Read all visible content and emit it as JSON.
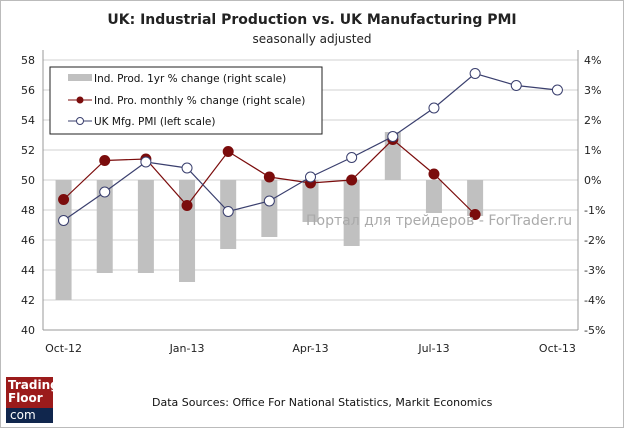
{
  "chart_data": {
    "type": "bar+line",
    "title": "UK: Industrial Production vs. UK Manufacturing PMI",
    "subtitle": "seasonally adjusted",
    "categories": [
      "Oct-12",
      "Nov-12",
      "Dec-12",
      "Jan-13",
      "Feb-13",
      "Mar-13",
      "Apr-13",
      "May-13",
      "Jun-13",
      "Jul-13",
      "Aug-13",
      "Sep-13",
      "Oct-13"
    ],
    "x_tick_labels": [
      "Oct-12",
      "Jan-13",
      "Apr-13",
      "Jul-13",
      "Oct-13"
    ],
    "left_axis": {
      "ylim": [
        40,
        58
      ],
      "ticks": [
        "40",
        "42",
        "44",
        "46",
        "48",
        "50",
        "52",
        "54",
        "56",
        "58"
      ]
    },
    "right_axis": {
      "ylim": [
        -5,
        4
      ],
      "ticks": [
        "-5%",
        "-4%",
        "-3%",
        "-2%",
        "-1%",
        "0%",
        "1%",
        "2%",
        "3%",
        "4%"
      ]
    },
    "grid": true,
    "legend_position": "top-left",
    "series": [
      {
        "name": "Ind. Prod. 1yr  % change (right scale)",
        "type": "bar",
        "axis": "right",
        "color": "#c0c0c0",
        "values": [
          -4.0,
          -3.1,
          -3.1,
          -3.4,
          -2.3,
          -1.9,
          -1.4,
          -2.2,
          1.6,
          -1.1,
          -1.2,
          null,
          null
        ]
      },
      {
        "name": "Ind. Pro. monthly % change (right scale)",
        "type": "line",
        "axis": "right",
        "color": "#7b0c0c",
        "values": [
          -0.65,
          0.65,
          0.7,
          -0.85,
          0.95,
          0.1,
          -0.1,
          0.0,
          1.35,
          0.2,
          -1.15,
          null,
          null
        ]
      },
      {
        "name": "UK Mfg. PMI (left scale)",
        "type": "line",
        "axis": "left",
        "color": "#3a3f6e",
        "values": [
          47.3,
          49.2,
          51.2,
          50.8,
          47.9,
          48.6,
          50.2,
          51.5,
          52.9,
          54.8,
          57.1,
          56.3,
          56.0
        ]
      }
    ]
  },
  "footer": {
    "source": "Data Sources:  Office For National Statistics, Markit Economics"
  },
  "logo": {
    "line1": "Trading",
    "line2": "Floor",
    "line3": "com"
  },
  "watermark": "Портал для трейдеров - ForTrader.ru"
}
